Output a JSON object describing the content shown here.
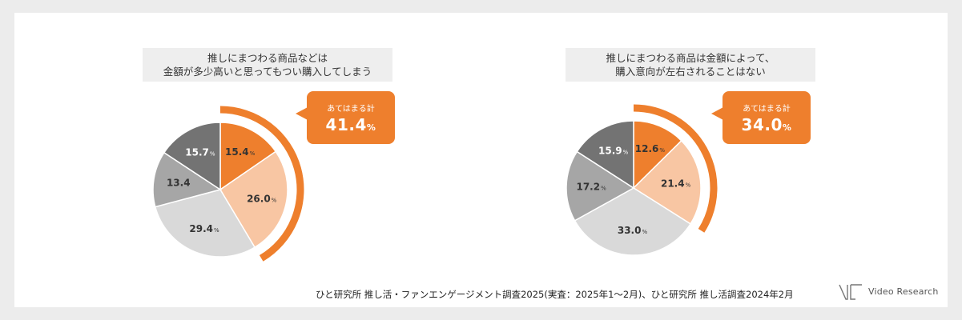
{
  "chart_data": [
    {
      "type": "pie",
      "title_lines": [
        "推しにまつわる商品などは",
        "金額が多少高いと思ってもつい購入してしまう"
      ],
      "categories": [
        "",
        "",
        "",
        "",
        ""
      ],
      "values": [
        15.4,
        26.0,
        29.4,
        13.4,
        15.7
      ],
      "value_labels": [
        "15.4",
        "26.0",
        "29.4",
        "13.4",
        "15.7"
      ],
      "value_units": [
        "%",
        "%",
        "%",
        "",
        "%"
      ],
      "colors": [
        "#ee7f2d",
        "#f8c6a3",
        "#d9d9d9",
        "#a6a6a6",
        "#737373"
      ],
      "label_colors": [
        "#333333",
        "#333333",
        "#333333",
        "#333333",
        "#ffffff"
      ],
      "highlight": {
        "label": "あてはまる計",
        "value": "41.4",
        "unit": "%",
        "covers_slices": 2
      }
    },
    {
      "type": "pie",
      "title_lines": [
        "推しにまつわる商品は金額によって、",
        "購入意向が左右されることはない"
      ],
      "categories": [
        "",
        "",
        "",
        "",
        ""
      ],
      "values": [
        12.6,
        21.4,
        33.0,
        17.2,
        15.9
      ],
      "value_labels": [
        "12.6",
        "21.4",
        "33.0",
        "17.2",
        "15.9"
      ],
      "value_units": [
        "%",
        "%",
        "%",
        "%",
        "%"
      ],
      "colors": [
        "#ee7f2d",
        "#f8c6a3",
        "#d9d9d9",
        "#a6a6a6",
        "#737373"
      ],
      "label_colors": [
        "#333333",
        "#333333",
        "#333333",
        "#333333",
        "#ffffff"
      ],
      "highlight": {
        "label": "あてはまる計",
        "value": "34.0",
        "unit": "%",
        "covers_slices": 2
      }
    }
  ],
  "footer": {
    "source": "ひと研究所 推し活・ファンエンゲージメント調査2025(実査：2025年1〜2月)、ひと研究所 推し活調査2024年2月"
  },
  "logo": {
    "text": "Video Research"
  },
  "colors": {
    "accent": "#ee7f2d",
    "background": "#ececec",
    "card": "#ffffff"
  }
}
